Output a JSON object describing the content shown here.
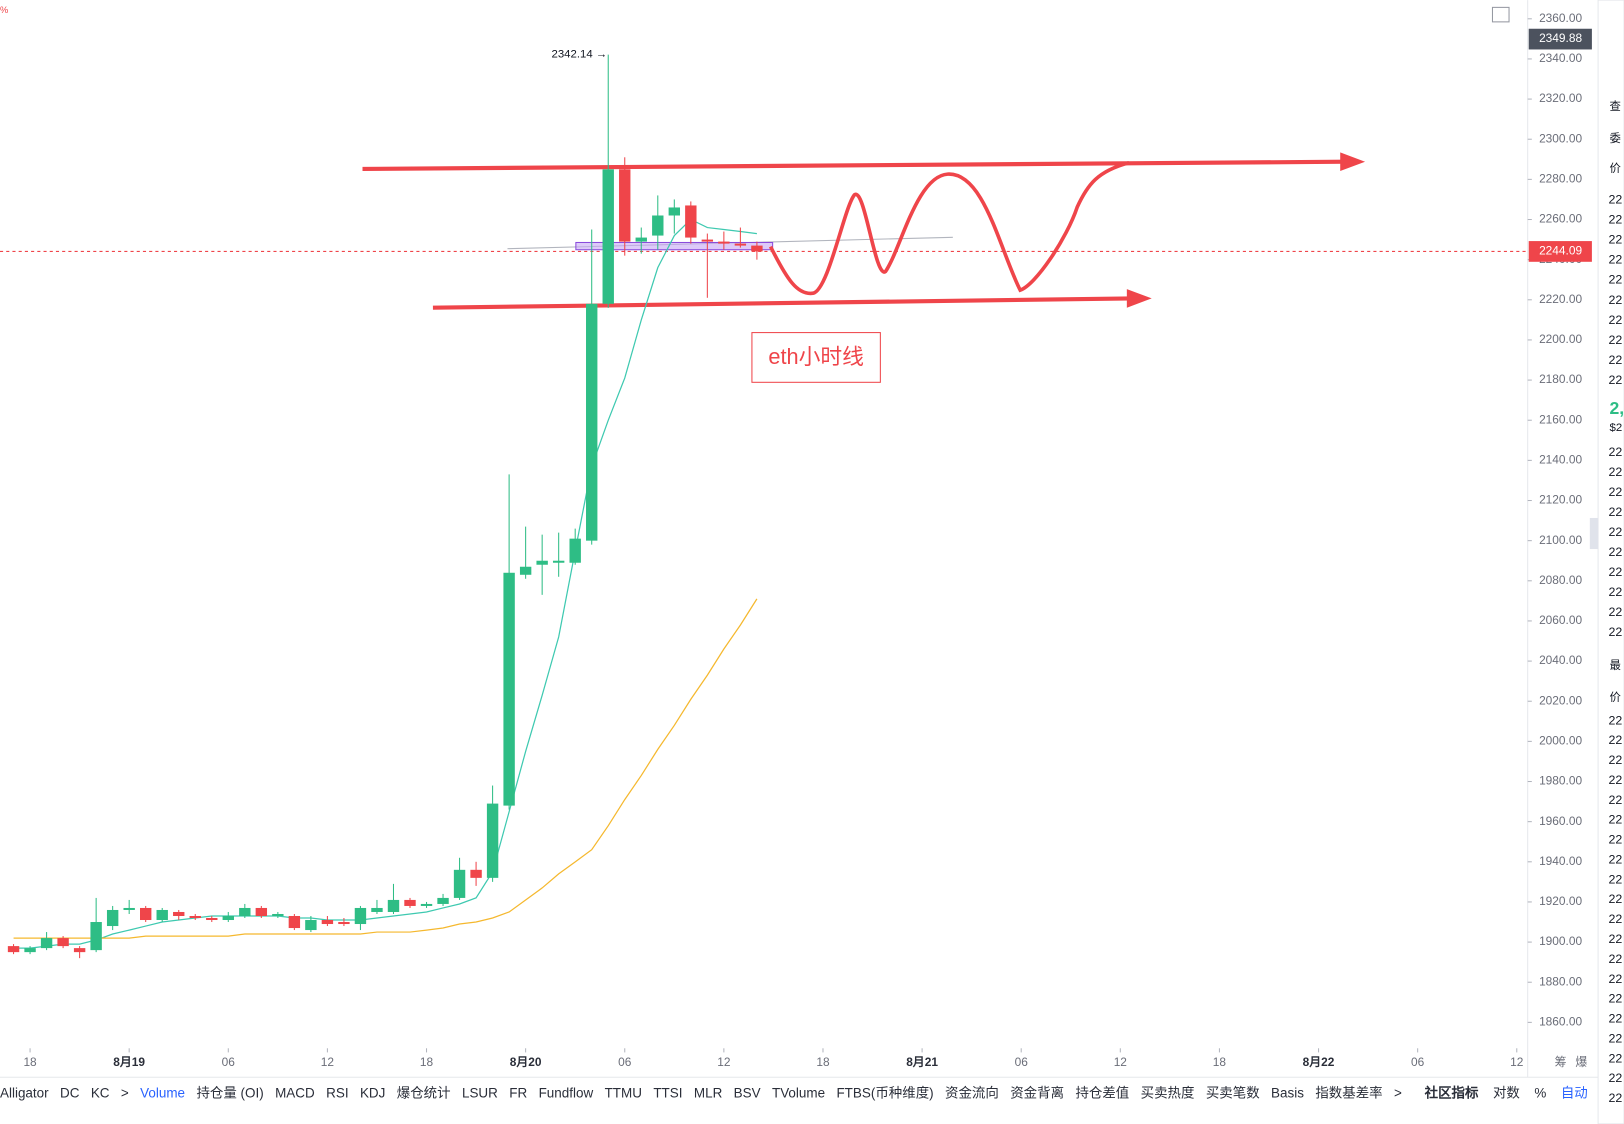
{
  "chart_data": {
    "type": "candlestick",
    "up_color": "#2ebd85",
    "down_color": "#ef454a",
    "x": [
      17,
      18,
      19,
      20,
      21,
      22,
      23,
      24,
      25,
      26,
      27,
      28,
      29,
      30,
      31,
      32,
      33,
      34,
      35,
      36,
      37,
      38,
      39,
      40,
      41,
      42,
      43,
      44,
      45,
      46,
      47,
      48,
      49,
      50,
      51,
      52,
      53,
      54,
      55,
      56,
      57,
      58,
      59,
      60,
      61,
      62
    ],
    "open": [
      1898,
      1895,
      1897,
      1902,
      1897,
      1896,
      1908,
      1916,
      1917,
      1911,
      1915,
      1913,
      1912,
      1911,
      1913,
      1917,
      1913,
      1913,
      1906,
      1911,
      1910,
      1909,
      1915,
      1915,
      1921,
      1918,
      1919,
      1922,
      1936,
      1932,
      1968,
      2083,
      2088,
      2089,
      2089,
      2100,
      2218,
      2285,
      2249,
      2252,
      2262,
      2267,
      2250,
      2249,
      2248,
      2247
    ],
    "high": [
      1899,
      1898,
      1905,
      1903,
      1898,
      1922,
      1918,
      1921,
      1918,
      1917,
      1916,
      1914,
      1913,
      1915,
      1919,
      1918,
      1915,
      1914,
      1913,
      1913,
      1912,
      1918,
      1921,
      1929,
      1922,
      1920,
      1924,
      1942,
      1940,
      1978,
      2133,
      2107,
      2103,
      2104,
      2106,
      2255,
      2342.14,
      2291,
      2256,
      2272,
      2270,
      2269,
      2253,
      2254,
      2256,
      2249
    ],
    "low": [
      1894,
      1894,
      1896,
      1897,
      1892,
      1895,
      1906,
      1914,
      1910,
      1910,
      1911,
      1911,
      1910,
      1910,
      1912,
      1912,
      1912,
      1906,
      1905,
      1908,
      1908,
      1906,
      1914,
      1914,
      1917,
      1917,
      1918,
      1921,
      1928,
      1930,
      1966,
      2081,
      2073,
      2082,
      2088,
      2098,
      2216,
      2242,
      2243,
      2245,
      2253,
      2248,
      2221,
      2245,
      2246,
      2240
    ],
    "close": [
      1895,
      1897,
      1902,
      1898,
      1895,
      1910,
      1916,
      1917,
      1911,
      1916,
      1913,
      1912,
      1911,
      1913,
      1917,
      1913,
      1914,
      1907,
      1911,
      1909,
      1909,
      1917,
      1917,
      1921,
      1918,
      1919,
      1922,
      1936,
      1932,
      1969,
      2084,
      2087,
      2090,
      2090,
      2101,
      2218,
      2285,
      2249,
      2251,
      2262,
      2266,
      2251,
      2249,
      2248,
      2247,
      2244.09
    ],
    "overlays": [
      {
        "color": "#3ec9b0",
        "values": [
          1897,
          1897,
          1898,
          1899,
          1899,
          1901,
          1904,
          1906,
          1908,
          1910,
          1911,
          1912,
          1913,
          1913,
          1913,
          1913,
          1913,
          1912,
          1912,
          1911,
          1911,
          1911,
          1912,
          1913,
          1914,
          1915,
          1917,
          1919,
          1922,
          1935,
          1965,
          1995,
          2023,
          2052,
          2095,
          2137,
          2160,
          2181,
          2210,
          2236,
          2252,
          2260,
          2256,
          2255,
          2254,
          2253
        ]
      },
      {
        "color": "#f5b82e",
        "values": [
          1902,
          1902,
          1902,
          1902,
          1902,
          1902,
          1902,
          1902,
          1903,
          1903,
          1903,
          1903,
          1903,
          1903,
          1904,
          1904,
          1904,
          1904,
          1904,
          1904,
          1904,
          1904,
          1905,
          1905,
          1905,
          1906,
          1907,
          1909,
          1910,
          1912,
          1915,
          1921,
          1927,
          1934,
          1940,
          1946,
          1958,
          1971,
          1983,
          1996,
          2008,
          2021,
          2033,
          2046,
          2058,
          2071
        ]
      }
    ],
    "high_label": "2342.14 →",
    "current_price": 2244.09,
    "cursor_price": 2349.88,
    "ylim": [
      1847.1,
      2369.3
    ],
    "yticks": [
      {
        "value": 2360,
        "label": "2360.00"
      },
      {
        "value": 2340,
        "label": "2340.00"
      },
      {
        "value": 2320,
        "label": "2320.00"
      },
      {
        "value": 2300,
        "label": "2300.00"
      },
      {
        "value": 2280,
        "label": "2280.00"
      },
      {
        "value": 2260,
        "label": "2260.00"
      },
      {
        "value": 2240,
        "label": "2240.00"
      },
      {
        "value": 2220,
        "label": "2220.00"
      },
      {
        "value": 2200,
        "label": "2200.00"
      },
      {
        "value": 2180,
        "label": "2180.00"
      },
      {
        "value": 2160,
        "label": "2160.00"
      },
      {
        "value": 2140,
        "label": "2140.00"
      },
      {
        "value": 2120,
        "label": "2120.00"
      },
      {
        "value": 2100,
        "label": "2100.00"
      },
      {
        "value": 2080,
        "label": "2080.00"
      },
      {
        "value": 2060,
        "label": "2060.00"
      },
      {
        "value": 2040,
        "label": "2040.00"
      },
      {
        "value": 2020,
        "label": "2020.00"
      },
      {
        "value": 2000,
        "label": "2000.00"
      },
      {
        "value": 1980,
        "label": "1980.00"
      },
      {
        "value": 1960,
        "label": "1960.00"
      },
      {
        "value": 1940,
        "label": "1940.00"
      },
      {
        "value": 1920,
        "label": "1920.00"
      },
      {
        "value": 1900,
        "label": "1900.00"
      },
      {
        "value": 1880,
        "label": "1880.00"
      },
      {
        "value": 1860,
        "label": "1860.00"
      }
    ],
    "xlim": [
      16.18,
      108.66
    ],
    "xticks": [
      {
        "value": 18,
        "label": "18"
      },
      {
        "value": 24,
        "label": "8月19"
      },
      {
        "value": 30,
        "label": "06"
      },
      {
        "value": 36,
        "label": "12"
      },
      {
        "value": 42,
        "label": "18"
      },
      {
        "value": 48,
        "label": "8月20"
      },
      {
        "value": 54,
        "label": "06"
      },
      {
        "value": 60,
        "label": "12"
      },
      {
        "value": 66,
        "label": "18"
      },
      {
        "value": 72,
        "label": "8月21"
      },
      {
        "value": 78,
        "label": "06"
      },
      {
        "value": 84,
        "label": "12"
      },
      {
        "value": 90,
        "label": "18"
      },
      {
        "value": 96,
        "label": "8月22"
      },
      {
        "value": 102,
        "label": "06"
      },
      {
        "value": 108,
        "label": "12"
      }
    ],
    "annotation": "eth小时线"
  },
  "corner_mark": "%",
  "axis_extras": [
    "筹",
    "爆"
  ],
  "toolbar": {
    "items": [
      "Alligator",
      "DC",
      "KC",
      ">",
      "Volume",
      "持仓量 (OI)",
      "MACD",
      "RSI",
      "KDJ",
      "爆仓统计",
      "LSUR",
      "FR",
      "Fundflow",
      "TTMU",
      "TTSI",
      "MLR",
      "BSV",
      "TVolume",
      "FTBS(币种维度)",
      "资金流向",
      "资金背离",
      "持仓差值",
      "买卖热度",
      "买卖笔数",
      "Basis",
      "指数基差率",
      ">"
    ],
    "active": "Volume",
    "right": [
      "社区指标",
      "对数",
      "%",
      "自动"
    ]
  },
  "side_panel": {
    "labels": [
      "查",
      "委",
      "价",
      "2,",
      "$2",
      "最",
      "价"
    ],
    "prices": [
      "22",
      "22",
      "22",
      "22",
      "22",
      "22",
      "22",
      "22",
      "22",
      "22",
      "22",
      "22",
      "22",
      "22",
      "22",
      "22",
      "22",
      "22",
      "22",
      "22",
      "22",
      "22",
      "22",
      "22",
      "22",
      "22",
      "22",
      "22",
      "22",
      "22",
      "22",
      "22",
      "22",
      "22",
      "22",
      "22",
      "22",
      "22",
      "22",
      "22"
    ],
    "price_colors": [
      "#ef454a",
      "#ef454a",
      "#ef454a",
      "#ef454a",
      "#ef454a",
      "#ef454a",
      "#ef454a",
      "#ef454a",
      "#ef454a",
      "#ef454a",
      "#2ebd85",
      "#2ebd85",
      "#2ebd85",
      "#2ebd85",
      "#2ebd85",
      "#2ebd85",
      "#2ebd85",
      "#2ebd85",
      "#2ebd85",
      "#2ebd85",
      "#2ebd85",
      "#ef454a",
      "#ef454a",
      "#2ebd85",
      "#ef454a",
      "#2ebd85",
      "#ef454a",
      "#2ebd85",
      "#ef454a",
      "#ef454a",
      "#2ebd85",
      "#2ebd85",
      "#ef454a",
      "#2ebd85",
      "#2ebd85",
      "#2ebd85",
      "#ef454a",
      "#2ebd85",
      "#2ebd85",
      "#2ebd85"
    ]
  }
}
